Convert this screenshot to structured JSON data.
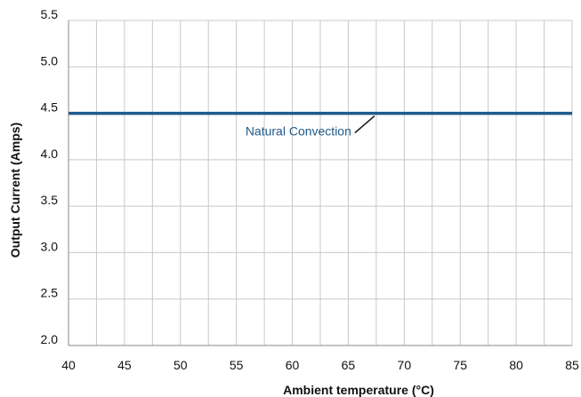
{
  "chart_data": {
    "type": "line",
    "xlabel": "Ambient temperature (°C)",
    "ylabel": "Output Current (Amps)",
    "xlim": [
      40,
      85
    ],
    "ylim": [
      2.0,
      5.5
    ],
    "x_ticks": [
      "40",
      "45",
      "50",
      "55",
      "60",
      "65",
      "70",
      "75",
      "80",
      "85"
    ],
    "y_ticks": [
      "2.0",
      "2.5",
      "3.0",
      "3.5",
      "4.0",
      "4.5",
      "5.0",
      "5.5"
    ],
    "grid": true,
    "series": [
      {
        "name": "Natural Convection",
        "color": "#1e5a8c",
        "x": [
          40,
          85
        ],
        "y": [
          4.5,
          4.5
        ]
      }
    ],
    "annotations": [
      {
        "text": "Natural Convection",
        "points_to": {
          "x": 67.5,
          "y": 4.5
        }
      }
    ]
  }
}
